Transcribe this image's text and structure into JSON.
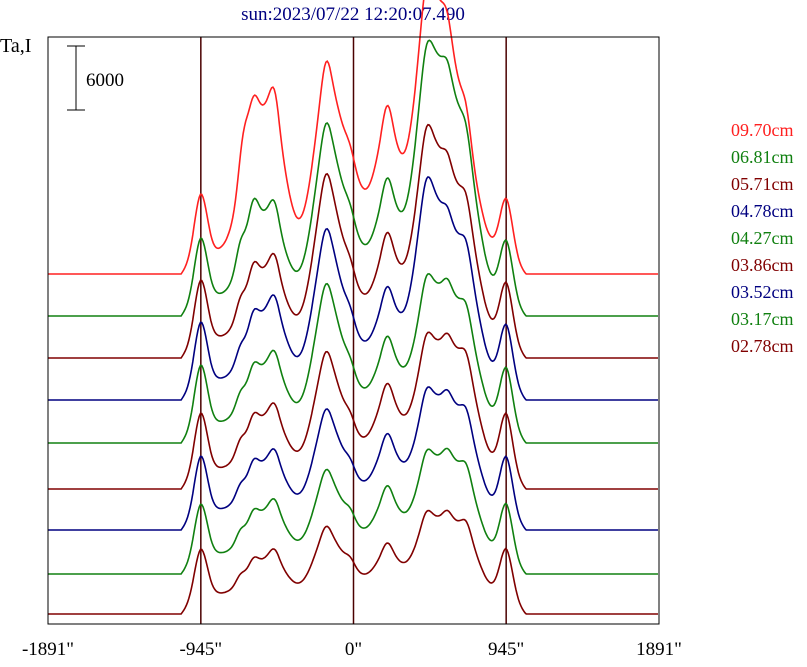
{
  "chart_data": {
    "type": "line",
    "title": "sun:2023/07/22 12:20:07.490",
    "ylabel": "Ta,I",
    "scale_bar_label": "6000",
    "x_tick_labels": [
      "-1891\"",
      "-945\"",
      "0\"",
      "945\"",
      "1891\""
    ],
    "x_ticks": [
      -1891,
      -945,
      0,
      945,
      1891
    ],
    "xlim": [
      -1891,
      1891
    ],
    "vertical_lines": [
      -945,
      0,
      945
    ],
    "colors": {
      "axes": "#000000",
      "marker_lines": "#4a0000",
      "title": "#000080"
    },
    "series": [
      {
        "name": "09.70cm",
        "color": "#ff2020",
        "baseline": 274,
        "peaks": [
          [
            -680,
            32
          ],
          [
            -700,
            8
          ],
          [
            -700,
            8
          ],
          [
            -620,
            90
          ],
          [
            -620,
            30
          ],
          [
            -490,
            110
          ],
          [
            -490,
            30
          ],
          [
            -170,
            155
          ],
          [
            -170,
            25
          ],
          [
            -20,
            70
          ],
          [
            -20,
            10
          ],
          [
            210,
            120
          ],
          [
            210,
            25
          ],
          [
            450,
            210
          ],
          [
            450,
            22
          ],
          [
            580,
            140
          ],
          [
            580,
            20
          ],
          [
            700,
            80
          ],
          [
            700,
            20
          ],
          [
            -945,
            60
          ],
          [
            945,
            55
          ]
        ]
      },
      {
        "name": "06.81cm",
        "color": "#108010",
        "baseline": 316,
        "peaks": [
          [
            -700,
            20
          ],
          [
            -620,
            55
          ],
          [
            -620,
            25
          ],
          [
            -490,
            60
          ],
          [
            -490,
            20
          ],
          [
            -170,
            145
          ],
          [
            -170,
            18
          ],
          [
            -20,
            55
          ],
          [
            -20,
            10
          ],
          [
            210,
            95
          ],
          [
            210,
            20
          ],
          [
            450,
            195
          ],
          [
            450,
            18
          ],
          [
            580,
            130
          ],
          [
            580,
            18
          ],
          [
            700,
            110
          ],
          [
            700,
            15
          ],
          [
            -945,
            58
          ],
          [
            945,
            55
          ]
        ]
      },
      {
        "name": "05.71cm",
        "color": "#800000",
        "baseline": 358,
        "peaks": [
          [
            -700,
            15
          ],
          [
            -620,
            40
          ],
          [
            -620,
            20
          ],
          [
            -490,
            55
          ],
          [
            -490,
            18
          ],
          [
            -170,
            140
          ],
          [
            -170,
            16
          ],
          [
            -20,
            45
          ],
          [
            -20,
            10
          ],
          [
            210,
            85
          ],
          [
            210,
            18
          ],
          [
            450,
            165
          ],
          [
            450,
            18
          ],
          [
            580,
            95
          ],
          [
            580,
            16
          ],
          [
            700,
            95
          ],
          [
            700,
            15
          ],
          [
            -945,
            58
          ],
          [
            945,
            55
          ]
        ]
      },
      {
        "name": "04.78cm",
        "color": "#000080",
        "baseline": 400,
        "peaks": [
          [
            -700,
            12
          ],
          [
            -620,
            35
          ],
          [
            -620,
            18
          ],
          [
            -490,
            60
          ],
          [
            -490,
            15
          ],
          [
            -170,
            130
          ],
          [
            -170,
            14
          ],
          [
            -20,
            40
          ],
          [
            -20,
            10
          ],
          [
            210,
            75
          ],
          [
            210,
            16
          ],
          [
            450,
            160
          ],
          [
            450,
            16
          ],
          [
            580,
            85
          ],
          [
            580,
            15
          ],
          [
            700,
            95
          ],
          [
            700,
            14
          ],
          [
            -945,
            58
          ],
          [
            945,
            55
          ]
        ]
      },
      {
        "name": "04.27cm",
        "color": "#108010",
        "baseline": 443,
        "peaks": [
          [
            -700,
            12
          ],
          [
            -620,
            30
          ],
          [
            -620,
            16
          ],
          [
            -490,
            50
          ],
          [
            -490,
            14
          ],
          [
            -170,
            120
          ],
          [
            -170,
            13
          ],
          [
            -20,
            35
          ],
          [
            -20,
            9
          ],
          [
            210,
            70
          ],
          [
            210,
            15
          ],
          [
            450,
            110
          ],
          [
            450,
            15
          ],
          [
            580,
            75
          ],
          [
            580,
            14
          ],
          [
            700,
            80
          ],
          [
            700,
            13
          ],
          [
            -945,
            58
          ],
          [
            945,
            55
          ]
        ]
      },
      {
        "name": "03.86cm",
        "color": "#800000",
        "baseline": 489,
        "peaks": [
          [
            -700,
            12
          ],
          [
            -620,
            28
          ],
          [
            -620,
            15
          ],
          [
            -490,
            45
          ],
          [
            -490,
            13
          ],
          [
            -170,
            100
          ],
          [
            -170,
            12
          ],
          [
            -20,
            30
          ],
          [
            -20,
            9
          ],
          [
            210,
            70
          ],
          [
            210,
            14
          ],
          [
            450,
            100
          ],
          [
            450,
            14
          ],
          [
            580,
            70
          ],
          [
            580,
            13
          ],
          [
            700,
            80
          ],
          [
            700,
            12
          ],
          [
            -945,
            56
          ],
          [
            945,
            55
          ]
        ]
      },
      {
        "name": "03.52cm",
        "color": "#000080",
        "baseline": 530,
        "peaks": [
          [
            -700,
            10
          ],
          [
            -620,
            25
          ],
          [
            -620,
            14
          ],
          [
            -490,
            42
          ],
          [
            -490,
            12
          ],
          [
            -170,
            85
          ],
          [
            -170,
            11
          ],
          [
            -20,
            28
          ],
          [
            -20,
            8
          ],
          [
            210,
            62
          ],
          [
            210,
            13
          ],
          [
            450,
            90
          ],
          [
            450,
            13
          ],
          [
            580,
            62
          ],
          [
            580,
            12
          ],
          [
            700,
            68
          ],
          [
            700,
            12
          ],
          [
            -945,
            54
          ],
          [
            945,
            53
          ]
        ]
      },
      {
        "name": "03.17cm",
        "color": "#108010",
        "baseline": 574,
        "peaks": [
          [
            -700,
            10
          ],
          [
            -620,
            22
          ],
          [
            -620,
            12
          ],
          [
            -490,
            38
          ],
          [
            -490,
            11
          ],
          [
            -170,
            70
          ],
          [
            -170,
            10
          ],
          [
            -20,
            25
          ],
          [
            -20,
            8
          ],
          [
            210,
            55
          ],
          [
            210,
            12
          ],
          [
            450,
            75
          ],
          [
            450,
            12
          ],
          [
            580,
            55
          ],
          [
            580,
            11
          ],
          [
            700,
            60
          ],
          [
            700,
            11
          ],
          [
            -945,
            50
          ],
          [
            945,
            50
          ]
        ]
      },
      {
        "name": "02.78cm",
        "color": "#800000",
        "baseline": 614,
        "peaks": [
          [
            -700,
            8
          ],
          [
            -620,
            18
          ],
          [
            -620,
            10
          ],
          [
            -490,
            30
          ],
          [
            -490,
            10
          ],
          [
            -170,
            55
          ],
          [
            -170,
            9
          ],
          [
            -20,
            20
          ],
          [
            -20,
            7
          ],
          [
            210,
            40
          ],
          [
            210,
            10
          ],
          [
            450,
            60
          ],
          [
            450,
            10
          ],
          [
            580,
            42
          ],
          [
            580,
            10
          ],
          [
            700,
            48
          ],
          [
            700,
            10
          ],
          [
            -945,
            45
          ],
          [
            945,
            45
          ]
        ]
      }
    ]
  }
}
